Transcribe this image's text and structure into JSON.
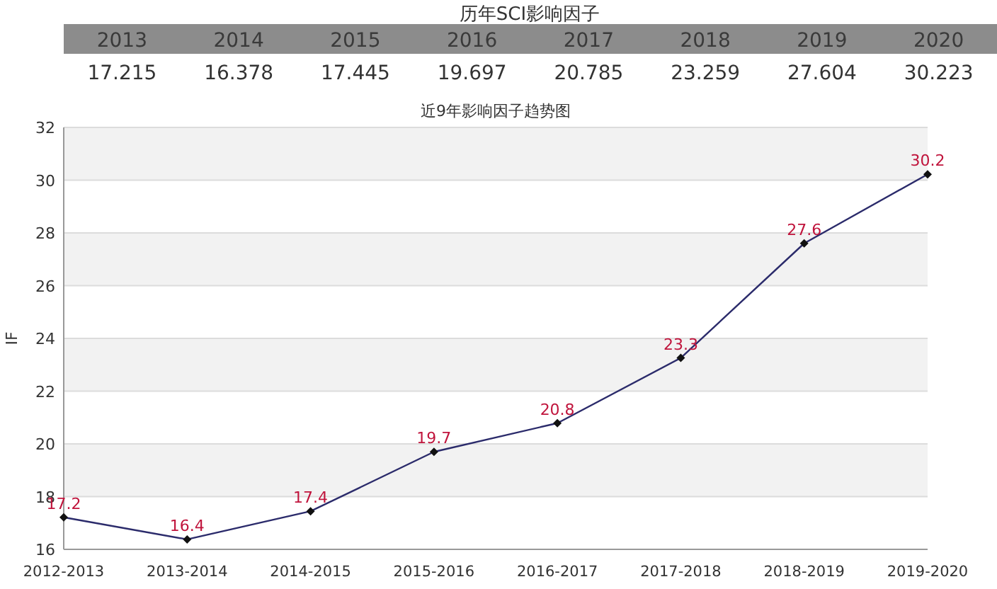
{
  "chart_data": {
    "type": "line",
    "title": "历年SCI影响因子",
    "subtitle": "近9年影响因子趋势图",
    "ylabel": "IF",
    "annotations": [
      "2013",
      "2014",
      "2015",
      "2016",
      "2017",
      "2018",
      "2019",
      "2020",
      "17.215",
      "16.378",
      "17.445",
      "19.697",
      "20.785",
      "23.259",
      "27.604",
      "30.223"
    ],
    "categories": [
      "2012-2013",
      "2013-2014",
      "2014-2015",
      "2015-2016",
      "2016-2017",
      "2017-2018",
      "2018-2019",
      "2019-2020"
    ],
    "values": [
      17.215,
      16.378,
      17.445,
      19.697,
      20.785,
      23.259,
      27.604,
      30.223
    ],
    "value_labels": [
      "17.2",
      "16.4",
      "17.4",
      "19.7",
      "20.8",
      "23.3",
      "27.6",
      "30.2"
    ],
    "color": "#2b2b6b",
    "marker": "diamond",
    "line_style": "solid",
    "grid": "y",
    "ylim": [
      16,
      32
    ],
    "yticks": [
      16,
      18,
      20,
      22,
      24,
      26,
      28,
      30,
      32
    ]
  }
}
